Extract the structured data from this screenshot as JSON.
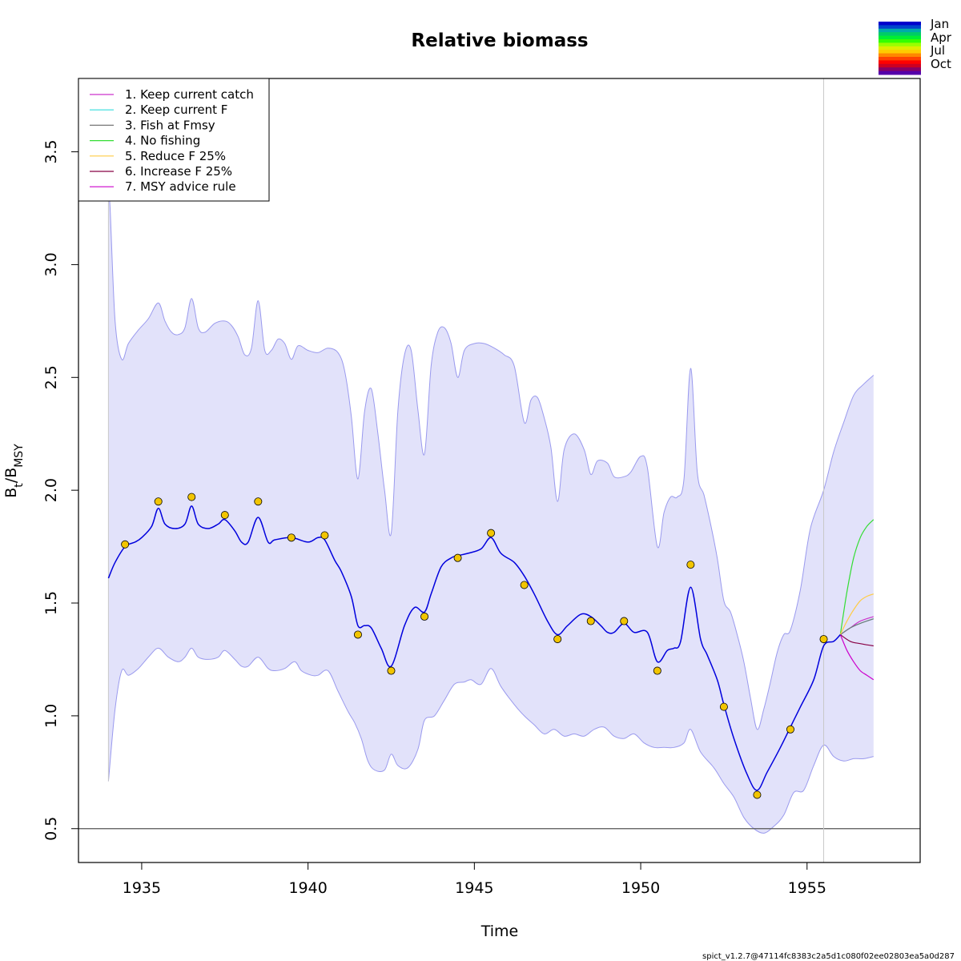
{
  "chart_data": {
    "type": "line",
    "title": "Relative biomass",
    "xlabel": "Time",
    "ylabel": {
      "base": "B",
      "sub1": "t",
      "slash": "/B",
      "sub2": "MSY"
    },
    "xlim": [
      1933.1,
      1958.4
    ],
    "ylim": [
      0.35,
      3.825
    ],
    "xticks": [
      "1935",
      "1940",
      "1945",
      "1950",
      "1955"
    ],
    "yticks": [
      "0.5",
      "1.0",
      "1.5",
      "2.0",
      "2.5",
      "3.0",
      "3.5"
    ],
    "reference_line_y": 0.5,
    "vertical_line_x": 1955.5,
    "colors": {
      "estimate": "#0000dd",
      "ci_fill": "#e2e2fa",
      "ci_edge": "#9a9aee",
      "obs_fill": "#f2c500",
      "grey": "#c8c8c8"
    },
    "estimate": {
      "x": [
        1934.0,
        1934.2,
        1934.5,
        1934.8,
        1935.0,
        1935.3,
        1935.5,
        1935.7,
        1936.0,
        1936.3,
        1936.5,
        1936.7,
        1937.0,
        1937.3,
        1937.5,
        1937.8,
        1938.0,
        1938.2,
        1938.5,
        1938.8,
        1939.0,
        1939.5,
        1940.0,
        1940.3,
        1940.5,
        1940.8,
        1941.0,
        1941.3,
        1941.5,
        1941.7,
        1941.9,
        1942.2,
        1942.5,
        1942.9,
        1943.2,
        1943.5,
        1943.7,
        1944.0,
        1944.3,
        1944.5,
        1944.8,
        1945.2,
        1945.5,
        1945.8,
        1946.2,
        1946.5,
        1946.8,
        1947.2,
        1947.5,
        1947.8,
        1948.2,
        1948.5,
        1948.8,
        1949.0,
        1949.2,
        1949.5,
        1949.8,
        1950.2,
        1950.5,
        1950.8,
        1951.0,
        1951.2,
        1951.5,
        1951.8,
        1952.0,
        1952.3,
        1952.5,
        1952.8,
        1953.2,
        1953.5,
        1953.8,
        1954.2,
        1954.5,
        1954.8,
        1955.2,
        1955.5,
        1955.8,
        1956.0
      ],
      "y": [
        1.61,
        1.68,
        1.75,
        1.77,
        1.79,
        1.84,
        1.92,
        1.85,
        1.83,
        1.85,
        1.93,
        1.85,
        1.83,
        1.85,
        1.87,
        1.82,
        1.77,
        1.77,
        1.88,
        1.77,
        1.78,
        1.79,
        1.77,
        1.79,
        1.78,
        1.69,
        1.64,
        1.53,
        1.4,
        1.4,
        1.39,
        1.3,
        1.22,
        1.4,
        1.48,
        1.46,
        1.54,
        1.66,
        1.7,
        1.71,
        1.72,
        1.74,
        1.79,
        1.72,
        1.68,
        1.62,
        1.54,
        1.42,
        1.36,
        1.4,
        1.45,
        1.44,
        1.4,
        1.37,
        1.37,
        1.41,
        1.37,
        1.37,
        1.24,
        1.29,
        1.3,
        1.33,
        1.57,
        1.34,
        1.27,
        1.16,
        1.05,
        0.9,
        0.74,
        0.67,
        0.75,
        0.86,
        0.95,
        1.04,
        1.16,
        1.31,
        1.33,
        1.36
      ]
    },
    "ci_upper": {
      "x": [
        1934.0,
        1934.05,
        1934.2,
        1934.4,
        1934.6,
        1934.9,
        1935.2,
        1935.5,
        1935.7,
        1935.9,
        1936.1,
        1936.3,
        1936.5,
        1936.7,
        1936.9,
        1937.2,
        1937.5,
        1937.7,
        1937.9,
        1938.1,
        1938.3,
        1938.5,
        1938.7,
        1938.9,
        1939.1,
        1939.3,
        1939.5,
        1939.7,
        1940.0,
        1940.3,
        1940.6,
        1940.9,
        1941.1,
        1941.3,
        1941.5,
        1941.7,
        1941.9,
        1942.1,
        1942.3,
        1942.5,
        1942.7,
        1942.9,
        1943.1,
        1943.3,
        1943.5,
        1943.7,
        1943.9,
        1944.1,
        1944.3,
        1944.5,
        1944.7,
        1945.0,
        1945.3,
        1945.6,
        1945.9,
        1946.2,
        1946.5,
        1946.7,
        1946.9,
        1947.1,
        1947.3,
        1947.5,
        1947.7,
        1948.0,
        1948.3,
        1948.5,
        1948.7,
        1949.0,
        1949.2,
        1949.5,
        1949.7,
        1950.0,
        1950.2,
        1950.5,
        1950.7,
        1950.9,
        1951.1,
        1951.3,
        1951.5,
        1951.7,
        1951.9,
        1952.1,
        1952.3,
        1952.5,
        1952.7,
        1952.9,
        1953.1,
        1953.3,
        1953.5,
        1953.7,
        1953.9,
        1954.1,
        1954.3,
        1954.5,
        1954.8,
        1955.1,
        1955.5,
        1955.8,
        1956.1,
        1956.4,
        1956.7,
        1957.0
      ],
      "y": [
        3.3,
        3.25,
        2.75,
        2.58,
        2.65,
        2.71,
        2.76,
        2.83,
        2.75,
        2.7,
        2.69,
        2.72,
        2.85,
        2.72,
        2.7,
        2.74,
        2.75,
        2.73,
        2.68,
        2.6,
        2.63,
        2.84,
        2.62,
        2.62,
        2.67,
        2.65,
        2.58,
        2.64,
        2.62,
        2.61,
        2.63,
        2.61,
        2.53,
        2.33,
        2.05,
        2.35,
        2.45,
        2.25,
        2.0,
        1.81,
        2.35,
        2.6,
        2.62,
        2.36,
        2.16,
        2.55,
        2.7,
        2.72,
        2.65,
        2.5,
        2.62,
        2.65,
        2.65,
        2.63,
        2.6,
        2.55,
        2.3,
        2.4,
        2.41,
        2.32,
        2.19,
        1.95,
        2.18,
        2.25,
        2.18,
        2.07,
        2.13,
        2.12,
        2.06,
        2.06,
        2.08,
        2.15,
        2.1,
        1.75,
        1.9,
        1.97,
        1.97,
        2.05,
        2.54,
        2.08,
        1.98,
        1.85,
        1.7,
        1.51,
        1.46,
        1.36,
        1.24,
        1.08,
        0.94,
        1.03,
        1.15,
        1.28,
        1.36,
        1.38,
        1.56,
        1.83,
        2.0,
        2.17,
        2.3,
        2.42,
        2.47,
        2.51
      ]
    },
    "ci_lower": {
      "x": [
        1934.0,
        1934.2,
        1934.4,
        1934.6,
        1934.9,
        1935.2,
        1935.5,
        1935.8,
        1936.1,
        1936.3,
        1936.5,
        1936.7,
        1937.0,
        1937.3,
        1937.5,
        1937.8,
        1938.0,
        1938.2,
        1938.5,
        1938.8,
        1939.0,
        1939.3,
        1939.6,
        1939.8,
        1940.1,
        1940.3,
        1940.6,
        1940.9,
        1941.2,
        1941.4,
        1941.6,
        1941.8,
        1942.0,
        1942.3,
        1942.5,
        1942.7,
        1943.0,
        1943.3,
        1943.5,
        1943.8,
        1944.1,
        1944.4,
        1944.7,
        1944.9,
        1945.2,
        1945.5,
        1945.8,
        1946.2,
        1946.5,
        1946.8,
        1947.1,
        1947.4,
        1947.7,
        1948.0,
        1948.3,
        1948.6,
        1948.9,
        1949.2,
        1949.5,
        1949.8,
        1950.1,
        1950.4,
        1950.7,
        1951.0,
        1951.3,
        1951.5,
        1951.8,
        1952.2,
        1952.5,
        1952.8,
        1953.1,
        1953.4,
        1953.7,
        1954.0,
        1954.3,
        1954.6,
        1954.9,
        1955.2,
        1955.5,
        1955.8,
        1956.1,
        1956.4,
        1956.7,
        1957.0
      ],
      "y": [
        0.71,
        1.03,
        1.2,
        1.18,
        1.21,
        1.26,
        1.3,
        1.26,
        1.24,
        1.26,
        1.3,
        1.26,
        1.25,
        1.26,
        1.29,
        1.25,
        1.22,
        1.22,
        1.26,
        1.21,
        1.2,
        1.21,
        1.24,
        1.2,
        1.18,
        1.18,
        1.2,
        1.11,
        1.02,
        0.97,
        0.9,
        0.8,
        0.76,
        0.76,
        0.83,
        0.78,
        0.77,
        0.85,
        0.98,
        1.0,
        1.07,
        1.14,
        1.15,
        1.16,
        1.14,
        1.21,
        1.13,
        1.05,
        1.0,
        0.96,
        0.92,
        0.94,
        0.91,
        0.92,
        0.91,
        0.94,
        0.95,
        0.91,
        0.9,
        0.92,
        0.88,
        0.86,
        0.86,
        0.86,
        0.88,
        0.94,
        0.84,
        0.77,
        0.7,
        0.64,
        0.55,
        0.5,
        0.48,
        0.51,
        0.56,
        0.66,
        0.67,
        0.78,
        0.87,
        0.82,
        0.8,
        0.81,
        0.81,
        0.82
      ]
    },
    "observations": {
      "x": [
        1934.5,
        1935.5,
        1936.5,
        1937.5,
        1938.5,
        1939.5,
        1940.5,
        1941.5,
        1942.5,
        1943.5,
        1944.5,
        1945.5,
        1946.5,
        1947.5,
        1948.5,
        1949.5,
        1950.5,
        1951.5,
        1952.5,
        1953.5,
        1954.5,
        1955.5
      ],
      "y": [
        1.76,
        1.95,
        1.97,
        1.89,
        1.95,
        1.79,
        1.8,
        1.36,
        1.2,
        1.44,
        1.7,
        1.81,
        1.58,
        1.34,
        1.42,
        1.42,
        1.2,
        1.67,
        1.04,
        0.65,
        0.94,
        1.34
      ]
    },
    "series": [
      {
        "name": "1. Keep current catch",
        "color": "#cc33cc",
        "x": [
          1956.0,
          1956.3,
          1956.6,
          1957.0
        ],
        "y": [
          1.36,
          1.39,
          1.42,
          1.44
        ]
      },
      {
        "name": "2. Keep current F",
        "color": "#33dddd",
        "x": [
          1956.0,
          1956.3,
          1956.6,
          1957.0
        ],
        "y": [
          1.36,
          1.39,
          1.41,
          1.43
        ]
      },
      {
        "name": "3. Fish at Fmsy",
        "color": "#777777",
        "x": [
          1956.0,
          1956.3,
          1956.6,
          1957.0
        ],
        "y": [
          1.36,
          1.39,
          1.41,
          1.43
        ]
      },
      {
        "name": "4. No fishing",
        "color": "#33dd33",
        "x": [
          1956.0,
          1956.2,
          1956.4,
          1956.6,
          1956.8,
          1957.0
        ],
        "y": [
          1.36,
          1.55,
          1.7,
          1.79,
          1.84,
          1.87
        ]
      },
      {
        "name": "5. Reduce F 25%",
        "color": "#ffcc44",
        "x": [
          1956.0,
          1956.2,
          1956.4,
          1956.6,
          1956.8,
          1957.0
        ],
        "y": [
          1.36,
          1.42,
          1.47,
          1.51,
          1.53,
          1.54
        ]
      },
      {
        "name": "6. Increase F 25%",
        "color": "#880044",
        "x": [
          1956.0,
          1956.3,
          1956.6,
          1957.0
        ],
        "y": [
          1.36,
          1.33,
          1.32,
          1.31
        ]
      },
      {
        "name": "7. MSY advice rule",
        "color": "#cc00cc",
        "x": [
          1956.0,
          1956.2,
          1956.4,
          1956.6,
          1956.8,
          1957.0
        ],
        "y": [
          1.36,
          1.29,
          1.24,
          1.2,
          1.18,
          1.16
        ]
      }
    ],
    "season_colorbar": {
      "labels": [
        "Jan",
        "Apr",
        "Jul",
        "Oct"
      ],
      "colors": [
        "#0000cc",
        "#0044cc",
        "#00aaaa",
        "#00cc66",
        "#00ee33",
        "#33ff00",
        "#99ff00",
        "#ddee00",
        "#ffcc00",
        "#ff8800",
        "#ff4400",
        "#ff0000",
        "#cc0022",
        "#880066",
        "#5500aa"
      ]
    },
    "version_text": "spict_v1.2.7@47114fc8383c2a5d1c080f02ee02803ea5a0d287"
  }
}
